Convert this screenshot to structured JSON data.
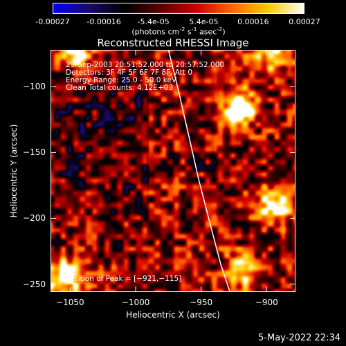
{
  "colorbar": {
    "min": -0.00027,
    "max": 0.00027,
    "tick_labels": [
      "-0.00027",
      "-0.00016",
      "-5.4e-05",
      "5.4e-05",
      "0.00016",
      "0.00027"
    ],
    "tick_values": [
      -0.00027,
      -0.00016,
      -5.4e-05,
      5.4e-05,
      0.00016,
      0.00027
    ],
    "units": {
      "text": "(photons cm",
      "sup1": "-2",
      "text2": " s",
      "sup2": "-1",
      "text3": " asec",
      "sup3": "-2",
      "text4": ")"
    },
    "colors": [
      "#0000ff",
      "#1a0a6a",
      "#000000",
      "#5a0000",
      "#cc0000",
      "#ff6600",
      "#ffcc00",
      "#ffffff"
    ]
  },
  "chart_data": {
    "type": "heatmap",
    "title": "Reconstructed RHESSI Image",
    "xlabel": "Heliocentric X (arcsec)",
    "ylabel": "Heliocentric Y (arcsec)",
    "xlim": [
      -1065,
      -878
    ],
    "ylim": [
      -256,
      -72
    ],
    "x_ticks": [
      -1050,
      -1000,
      -950,
      -900
    ],
    "y_ticks": [
      -100,
      -150,
      -200,
      -250
    ],
    "x_tick_labels": [
      "−1050",
      "−1000",
      "−950",
      "−900"
    ],
    "y_tick_labels": [
      "−100",
      "−150",
      "−200",
      "−250"
    ],
    "peak": {
      "x": -921,
      "y": -115
    },
    "limb_curve": {
      "x": [
        -975,
        -968,
        -960,
        -952,
        -943,
        -935,
        -928
      ],
      "y": [
        -72,
        -100,
        -135,
        -170,
        -205,
        -235,
        -256
      ]
    },
    "value_range": [
      -0.00027,
      0.00027
    ]
  },
  "info": {
    "time": "29-Sep-2003 20:51:52.000 to 20:57:52.000",
    "detectors": "Detectors: 3F 4F 5F 6F 7F 8F, Att 0",
    "energy": "Energy Range: 25.0 - 50.0 keV",
    "clean": "Clean     Total counts: 4.12E+03",
    "peak_text": "Position of Peak = [−921,−115]"
  },
  "datestamp": "5-May-2022 22:34"
}
